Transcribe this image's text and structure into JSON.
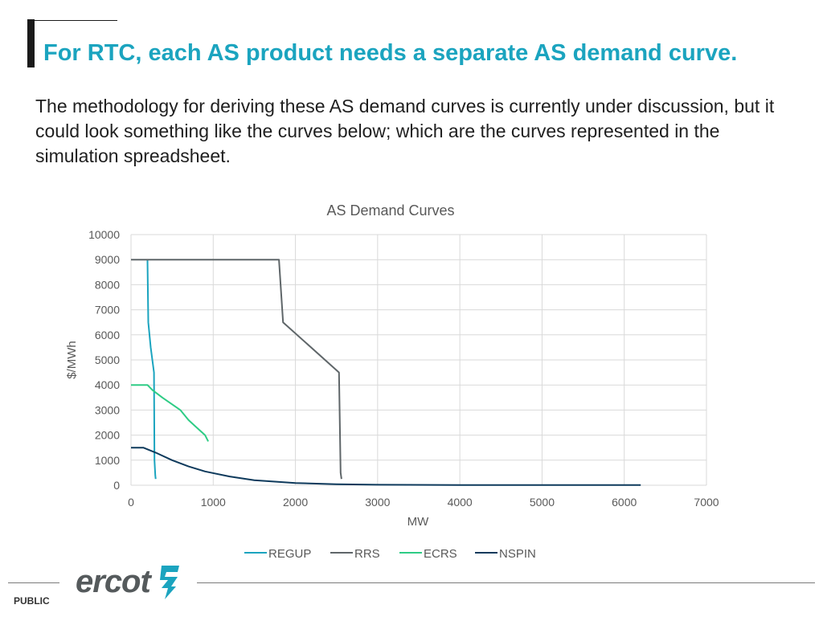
{
  "slide": {
    "title": "For RTC, each AS product needs a separate AS demand curve.",
    "body": "The methodology for deriving these AS demand curves is currently under discussion, but it could look something like the curves below; which are the curves represented in the simulation spreadsheet."
  },
  "footer": {
    "logo_text": "ercot",
    "classification": "PUBLIC"
  },
  "chart_data": {
    "type": "line",
    "title": "AS Demand Curves",
    "xlabel": "MW",
    "ylabel": "$/MWh",
    "xlim": [
      0,
      7000
    ],
    "ylim": [
      0,
      10000
    ],
    "xticks": [
      0,
      1000,
      2000,
      3000,
      4000,
      5000,
      6000,
      7000
    ],
    "yticks": [
      0,
      1000,
      2000,
      3000,
      4000,
      5000,
      6000,
      7000,
      8000,
      9000,
      10000
    ],
    "grid": true,
    "legend_position": "bottom",
    "series": [
      {
        "name": "REGUP",
        "color": "#1ba4bf",
        "x": [
          200,
          210,
          240,
          280,
          285,
          295,
          300
        ],
        "y": [
          9000,
          6500,
          5500,
          4500,
          1000,
          400,
          250
        ]
      },
      {
        "name": "RRS",
        "color": "#5f6669",
        "x": [
          0,
          1800,
          1850,
          2530,
          2550,
          2560
        ],
        "y": [
          9000,
          9000,
          6500,
          4500,
          500,
          250
        ]
      },
      {
        "name": "ECRS",
        "color": "#2ecc85",
        "x": [
          0,
          200,
          260,
          380,
          600,
          700,
          800,
          900,
          940
        ],
        "y": [
          4000,
          4000,
          3800,
          3500,
          3000,
          2600,
          2300,
          2000,
          1750
        ]
      },
      {
        "name": "NSPIN",
        "color": "#0e3a5c",
        "x": [
          0,
          150,
          300,
          500,
          700,
          900,
          1200,
          1500,
          2000,
          2500,
          3000,
          4000,
          5000,
          6200
        ],
        "y": [
          1500,
          1500,
          1300,
          1000,
          750,
          550,
          350,
          200,
          90,
          40,
          20,
          10,
          5,
          5
        ]
      }
    ]
  }
}
